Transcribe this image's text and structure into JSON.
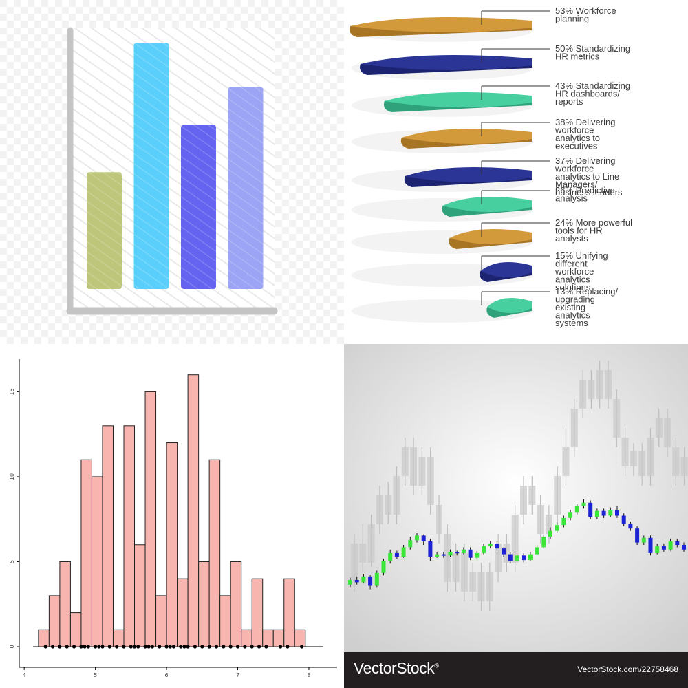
{
  "colors": {
    "gold": "#D39A3C",
    "navy": "#2B3595",
    "teal": "#47CFA0",
    "hist_fill": "#F8B4AE",
    "candle_up": "#39E639",
    "candle_down": "#1C22D6"
  },
  "chart_data": [
    {
      "type": "bar",
      "categories": [
        "",
        "",
        "",
        ""
      ],
      "values": [
        3.7,
        7.8,
        5.2,
        6.4
      ],
      "ylim": [
        0,
        8.5
      ],
      "colors": [
        "#BDC67A",
        "#5BCFFB",
        "#6464F0",
        "#9BA4F5"
      ],
      "grid": false
    },
    {
      "type": "bar",
      "orientation": "stacked-disc",
      "categories": [
        [
          "53% Workforce",
          "planning"
        ],
        [
          "50% Standardizing",
          "HR metrics"
        ],
        [
          "43% Standardizing",
          "HR dashboards/",
          "reports"
        ],
        [
          "38% Delivering",
          "workforce",
          "analytics to",
          "executives"
        ],
        [
          "37% Delivering",
          "workforce",
          "analytics to Line",
          "Managers/",
          "business leaders"
        ],
        [
          "26% Predictive",
          "analysis"
        ],
        [
          "24% More powerful",
          "tools for HR",
          "analysts"
        ],
        [
          "15% Unifying",
          "different",
          "workforce",
          "analytics",
          "solutions"
        ],
        [
          "13% Replacing/",
          "upgrading",
          "existing",
          "analytics",
          "systems"
        ]
      ],
      "values": [
        53,
        50,
        43,
        38,
        37,
        26,
        24,
        15,
        13
      ],
      "unit": "%"
    },
    {
      "type": "bar",
      "subtype": "histogram",
      "x_ticks": [
        "4",
        "5",
        "6",
        "7",
        "8"
      ],
      "y_ticks": [
        "0",
        "5",
        "10",
        "15"
      ],
      "xlim": [
        3.95,
        8.3
      ],
      "ylim": [
        0,
        17
      ],
      "bin_start": 4.2,
      "bin_width": 0.15,
      "values": [
        1,
        3,
        5,
        2,
        11,
        10,
        13,
        1,
        13,
        6,
        15,
        3,
        12,
        4,
        16,
        5,
        11,
        3,
        5,
        1,
        4,
        1,
        1,
        4,
        1
      ],
      "rug": [
        4.3,
        4.4,
        4.5,
        4.6,
        4.7,
        4.8,
        4.85,
        4.9,
        5.0,
        5.05,
        5.1,
        5.2,
        5.3,
        5.4,
        5.5,
        5.55,
        5.6,
        5.7,
        5.75,
        5.8,
        5.9,
        6.0,
        6.05,
        6.1,
        6.2,
        6.25,
        6.3,
        6.4,
        6.5,
        6.6,
        6.7,
        6.8,
        6.9,
        7.0,
        7.1,
        7.2,
        7.3,
        7.4,
        7.6,
        7.7,
        7.9
      ],
      "grid": false
    },
    {
      "type": "candlestick",
      "foreground": [
        [
          5.6,
          6.0,
          5.4,
          6.2
        ],
        [
          6.0,
          5.8,
          5.6,
          6.3
        ],
        [
          5.8,
          6.3,
          5.7,
          6.5
        ],
        [
          6.3,
          5.5,
          5.2,
          6.4
        ],
        [
          5.5,
          6.6,
          5.4,
          6.8
        ],
        [
          6.6,
          7.6,
          6.4,
          7.8
        ],
        [
          7.6,
          8.3,
          7.4,
          8.6
        ],
        [
          8.3,
          8.0,
          7.8,
          8.5
        ],
        [
          8.0,
          8.8,
          7.9,
          9.0
        ],
        [
          8.8,
          9.4,
          8.6,
          9.7
        ],
        [
          9.4,
          9.8,
          9.2,
          10.0
        ],
        [
          9.8,
          9.3,
          9.0,
          9.9
        ],
        [
          9.3,
          8.0,
          7.6,
          9.5
        ],
        [
          8.0,
          8.2,
          7.9,
          8.4
        ],
        [
          8.2,
          8.1,
          7.9,
          8.4
        ],
        [
          8.1,
          8.4,
          8.0,
          8.6
        ],
        [
          8.4,
          8.3,
          8.1,
          8.5
        ],
        [
          8.3,
          8.6,
          8.2,
          8.8
        ],
        [
          8.6,
          7.9,
          7.7,
          8.8
        ],
        [
          7.9,
          8.3,
          7.8,
          8.5
        ],
        [
          8.3,
          8.9,
          8.2,
          9.1
        ],
        [
          8.9,
          9.1,
          8.7,
          9.3
        ],
        [
          9.1,
          8.7,
          8.5,
          9.3
        ],
        [
          8.7,
          8.2,
          8.0,
          8.8
        ],
        [
          8.2,
          7.6,
          7.4,
          8.4
        ],
        [
          7.6,
          8.1,
          7.5,
          8.3
        ],
        [
          8.1,
          7.7,
          7.5,
          8.3
        ],
        [
          7.7,
          8.2,
          7.6,
          8.4
        ],
        [
          8.2,
          8.8,
          8.1,
          9.0
        ],
        [
          8.8,
          9.7,
          8.7,
          9.9
        ],
        [
          9.7,
          10.2,
          9.5,
          10.5
        ],
        [
          10.2,
          10.7,
          10.0,
          10.9
        ],
        [
          10.7,
          11.3,
          10.5,
          11.5
        ],
        [
          11.3,
          11.8,
          11.1,
          12.0
        ],
        [
          11.8,
          12.3,
          11.6,
          12.5
        ],
        [
          12.3,
          12.6,
          12.1,
          12.9
        ],
        [
          12.6,
          11.4,
          11.2,
          12.8
        ],
        [
          11.4,
          11.9,
          11.2,
          12.1
        ],
        [
          11.9,
          11.5,
          11.3,
          12.1
        ],
        [
          11.5,
          12.0,
          11.4,
          12.2
        ],
        [
          12.0,
          11.5,
          11.3,
          12.3
        ],
        [
          11.5,
          10.8,
          10.6,
          11.7
        ],
        [
          10.8,
          10.4,
          10.2,
          11.0
        ],
        [
          10.4,
          9.2,
          9.0,
          10.6
        ],
        [
          9.2,
          9.6,
          9.0,
          9.8
        ],
        [
          9.6,
          8.3,
          8.1,
          9.8
        ],
        [
          8.3,
          8.9,
          8.2,
          9.1
        ],
        [
          8.9,
          8.6,
          8.4,
          9.1
        ],
        [
          8.6,
          9.3,
          8.5,
          9.5
        ],
        [
          9.3,
          9.0,
          8.8,
          9.5
        ],
        [
          9.0,
          8.6,
          8.4,
          9.2
        ]
      ],
      "background": [
        [
          3,
          5,
          2.5,
          5.5
        ],
        [
          5,
          4,
          3.5,
          6
        ],
        [
          4,
          6,
          3.8,
          6.5
        ],
        [
          6,
          7.5,
          5.5,
          8
        ],
        [
          7.5,
          6.5,
          6,
          8.2
        ],
        [
          6.5,
          8.5,
          6,
          9
        ],
        [
          8.5,
          10,
          8,
          10.5
        ],
        [
          10,
          8,
          7.5,
          10.5
        ],
        [
          8,
          9.5,
          7.5,
          10
        ],
        [
          9.5,
          7,
          6.5,
          10
        ],
        [
          7,
          5.5,
          5,
          7.5
        ],
        [
          5.5,
          3,
          2.5,
          6
        ],
        [
          3,
          4.5,
          2.5,
          5
        ],
        [
          4.5,
          2.5,
          2,
          5
        ],
        [
          2.5,
          3.5,
          2,
          4
        ],
        [
          3.5,
          2,
          1.5,
          4
        ],
        [
          2,
          3.5,
          1.5,
          4
        ],
        [
          3.5,
          5,
          3,
          5.5
        ],
        [
          5,
          4,
          3.5,
          5.5
        ],
        [
          4,
          6.5,
          3.5,
          7
        ],
        [
          6.5,
          8,
          6,
          8.5
        ],
        [
          8,
          7,
          6.5,
          8.5
        ],
        [
          7,
          5.5,
          5,
          7.5
        ],
        [
          5.5,
          6.5,
          5,
          7
        ],
        [
          6.5,
          8.5,
          6,
          9
        ],
        [
          8.5,
          10,
          8,
          11
        ],
        [
          10,
          12,
          9.5,
          12.5
        ],
        [
          12,
          13.5,
          11.5,
          14
        ],
        [
          13.5,
          12.5,
          12,
          14
        ],
        [
          12.5,
          14,
          12,
          14.5
        ],
        [
          14,
          12.5,
          12,
          14.5
        ],
        [
          12.5,
          10.5,
          10,
          13
        ],
        [
          10.5,
          9,
          8.5,
          11
        ],
        [
          9,
          9.8,
          8.5,
          10.2
        ],
        [
          9.8,
          8.5,
          8,
          10.2
        ],
        [
          8.5,
          10.5,
          8,
          11
        ],
        [
          10.5,
          11.5,
          10,
          12
        ],
        [
          11.5,
          10,
          9.5,
          12
        ],
        [
          10,
          8.5,
          8,
          10.5
        ],
        [
          8.5,
          9.5,
          8,
          10
        ]
      ]
    }
  ],
  "watermark": {
    "logo": "VectorStock",
    "mark": "®",
    "url": "VectorStock.com/22758468"
  }
}
